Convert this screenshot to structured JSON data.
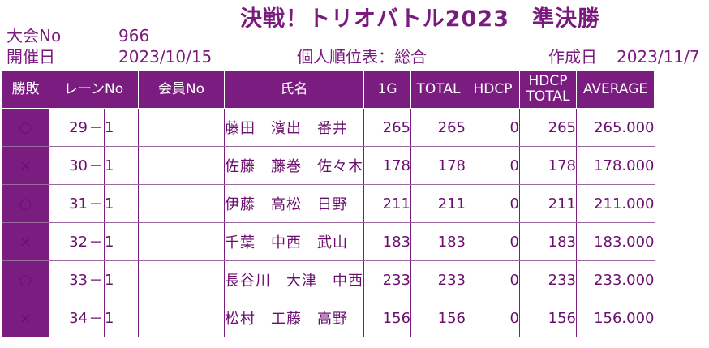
{
  "header": {
    "title": "決戦！トリオバトル2023　準決勝",
    "tournament_label": "大会No",
    "tournament_no": "966",
    "date_label": "開催日",
    "date": "2023/10/15",
    "report_title": "個人順位表：総合",
    "created_label": "作成日",
    "created_date": "2023/11/7"
  },
  "table": {
    "columns": {
      "result": "勝敗",
      "lane": "レーンNo",
      "member": "会員No",
      "name": "氏名",
      "g1": "1G",
      "total": "TOTAL",
      "hdcp": "HDCP",
      "hdcp_total_1": "HDCP",
      "hdcp_total_2": "TOTAL",
      "average": "AVERAGE"
    },
    "rows": [
      {
        "result": "○",
        "lane": "29",
        "dash": "－",
        "pos": "1",
        "member": "",
        "name": "藤田　濱出　番井",
        "g1": "265",
        "total": "265",
        "hdcp": "0",
        "hdcp_total": "265",
        "average": "265.000"
      },
      {
        "result": "×",
        "lane": "30",
        "dash": "－",
        "pos": "1",
        "member": "",
        "name": "佐藤　藤巻　佐々木",
        "g1": "178",
        "total": "178",
        "hdcp": "0",
        "hdcp_total": "178",
        "average": "178.000"
      },
      {
        "result": "○",
        "lane": "31",
        "dash": "－",
        "pos": "1",
        "member": "",
        "name": "伊藤　高松　日野",
        "g1": "211",
        "total": "211",
        "hdcp": "0",
        "hdcp_total": "211",
        "average": "211.000"
      },
      {
        "result": "×",
        "lane": "32",
        "dash": "－",
        "pos": "1",
        "member": "",
        "name": "千葉　中西　武山",
        "g1": "183",
        "total": "183",
        "hdcp": "0",
        "hdcp_total": "183",
        "average": "183.000"
      },
      {
        "result": "○",
        "lane": "33",
        "dash": "－",
        "pos": "1",
        "member": "",
        "name": "長谷川　大津　中西",
        "g1": "233",
        "total": "233",
        "hdcp": "0",
        "hdcp_total": "233",
        "average": "233.000"
      },
      {
        "result": "×",
        "lane": "34",
        "dash": "－",
        "pos": "1",
        "member": "",
        "name": "松村　工藤　高野",
        "g1": "156",
        "total": "156",
        "hdcp": "0",
        "hdcp_total": "156",
        "average": "156.000"
      }
    ]
  }
}
